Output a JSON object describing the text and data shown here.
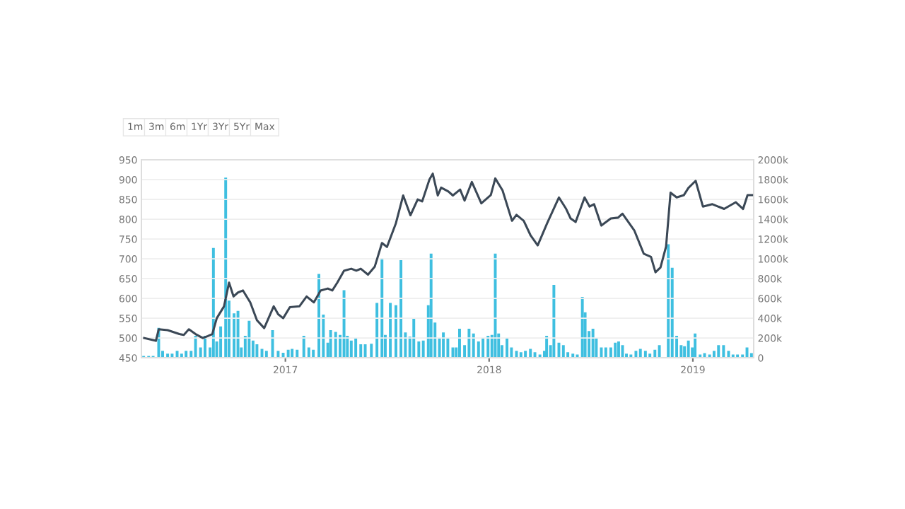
{
  "chart_data": {
    "type": "line",
    "annotations": [
      "1m",
      "3m",
      "6m",
      "1Yr",
      "3Yr",
      "5Yr",
      "Max"
    ],
    "xlim": [
      "2016-04-18",
      "2019-04-20"
    ],
    "xticks": [
      {
        "value": "2017-01-01",
        "label": "2017"
      },
      {
        "value": "2018-01-01",
        "label": "2018"
      },
      {
        "value": "2019-01-01",
        "label": "2019"
      }
    ],
    "ylim": [
      450,
      950
    ],
    "yticks": [
      450,
      500,
      550,
      600,
      650,
      700,
      750,
      800,
      850,
      900,
      950
    ],
    "y2lim": [
      0,
      2000
    ],
    "y2ticks": [
      {
        "value": 0,
        "label": "0"
      },
      {
        "value": 200,
        "label": "200k"
      },
      {
        "value": 400,
        "label": "400k"
      },
      {
        "value": 600,
        "label": "600k"
      },
      {
        "value": 800,
        "label": "800k"
      },
      {
        "value": 1000,
        "label": "1000k"
      },
      {
        "value": 1200,
        "label": "1200k"
      },
      {
        "value": 1400,
        "label": "1400k"
      },
      {
        "value": 1600,
        "label": "1600k"
      },
      {
        "value": 1800,
        "label": "1800k"
      },
      {
        "value": 2000,
        "label": "2000k"
      }
    ],
    "grid": "y",
    "legend": false,
    "marker": "none",
    "line_style": "solid",
    "series": [
      {
        "type": "bar",
        "axis": "y2",
        "color": "#3fbfe0",
        "x": [
          "2016-04-22",
          "2016-05-01",
          "2016-05-09",
          "2016-05-19",
          "2016-05-26",
          "2016-06-04",
          "2016-06-12",
          "2016-06-21",
          "2016-06-29",
          "2016-07-07",
          "2016-07-16",
          "2016-07-24",
          "2016-08-02",
          "2016-08-10",
          "2016-08-19",
          "2016-08-25",
          "2016-08-31",
          "2016-09-07",
          "2016-09-16",
          "2016-09-22",
          "2016-10-01",
          "2016-10-08",
          "2016-10-14",
          "2016-10-21",
          "2016-10-28",
          "2016-11-04",
          "2016-11-11",
          "2016-11-20",
          "2016-11-28",
          "2016-12-09",
          "2016-12-19",
          "2016-12-28",
          "2017-01-06",
          "2017-01-13",
          "2017-01-22",
          "2017-02-03",
          "2017-02-12",
          "2017-02-20",
          "2017-03-02",
          "2017-03-10",
          "2017-03-18",
          "2017-03-23",
          "2017-04-01",
          "2017-04-09",
          "2017-04-16",
          "2017-04-22",
          "2017-04-29",
          "2017-05-07",
          "2017-05-16",
          "2017-05-24",
          "2017-06-04",
          "2017-06-14",
          "2017-06-23",
          "2017-06-29",
          "2017-07-08",
          "2017-07-18",
          "2017-07-27",
          "2017-08-04",
          "2017-08-12",
          "2017-08-19",
          "2017-08-28",
          "2017-09-05",
          "2017-09-14",
          "2017-09-19",
          "2017-09-26",
          "2017-10-04",
          "2017-10-11",
          "2017-10-19",
          "2017-10-28",
          "2017-11-03",
          "2017-11-09",
          "2017-11-18",
          "2017-11-26",
          "2017-12-04",
          "2017-12-13",
          "2017-12-21",
          "2017-12-30",
          "2018-01-06",
          "2018-01-12",
          "2018-01-18",
          "2018-01-24",
          "2018-02-02",
          "2018-02-10",
          "2018-02-19",
          "2018-02-27",
          "2018-03-07",
          "2018-03-16",
          "2018-03-24",
          "2018-04-02",
          "2018-04-10",
          "2018-04-14",
          "2018-04-21",
          "2018-04-27",
          "2018-05-06",
          "2018-05-14",
          "2018-05-22",
          "2018-05-31",
          "2018-06-08",
          "2018-06-17",
          "2018-06-22",
          "2018-06-29",
          "2018-07-06",
          "2018-07-12",
          "2018-07-21",
          "2018-07-29",
          "2018-08-07",
          "2018-08-15",
          "2018-08-21",
          "2018-08-28",
          "2018-09-04",
          "2018-09-12",
          "2018-09-21",
          "2018-09-29",
          "2018-10-08",
          "2018-10-16",
          "2018-10-25",
          "2018-11-02",
          "2018-11-08",
          "2018-11-18",
          "2018-11-25",
          "2018-12-03",
          "2018-12-11",
          "2018-12-17",
          "2018-12-24",
          "2018-12-31",
          "2019-01-05",
          "2019-01-14",
          "2019-01-22",
          "2019-01-31",
          "2019-02-08",
          "2019-02-16",
          "2019-02-25",
          "2019-03-06",
          "2019-03-14",
          "2019-03-22",
          "2019-03-31",
          "2019-04-08",
          "2019-04-16"
        ],
        "values": [
          19,
          19,
          19,
          303,
          71,
          43,
          43,
          71,
          43,
          71,
          71,
          223,
          104,
          223,
          104,
          1109,
          166,
          318,
          1820,
          578,
          450,
          474,
          104,
          223,
          375,
          175,
          137,
          90,
          71,
          280,
          71,
          52,
          81,
          90,
          81,
          223,
          104,
          81,
          848,
          436,
          152,
          280,
          261,
          232,
          683,
          223,
          175,
          199,
          137,
          137,
          142,
          554,
          1005,
          232,
          554,
          531,
          986,
          256,
          213,
          398,
          166,
          175,
          531,
          1052,
          356,
          199,
          256,
          199,
          104,
          104,
          294,
          128,
          294,
          246,
          166,
          199,
          223,
          232,
          1052,
          246,
          128,
          199,
          104,
          71,
          57,
          71,
          90,
          57,
          33,
          71,
          223,
          128,
          736,
          152,
          128,
          57,
          43,
          33,
          616,
          460,
          270,
          294,
          199,
          104,
          104,
          104,
          152,
          166,
          128,
          43,
          33,
          71,
          90,
          71,
          43,
          81,
          128,
          9,
          1147,
          910,
          223,
          128,
          118,
          175,
          104,
          246,
          33,
          47,
          33,
          71,
          128,
          128,
          71,
          33,
          33,
          33,
          104,
          47
        ]
      },
      {
        "color": "#3b4856",
        "x": [
          "2016-04-23",
          "2016-05-14",
          "2016-05-19",
          "2016-06-04",
          "2016-06-25",
          "2016-07-03",
          "2016-07-12",
          "2016-07-24",
          "2016-08-06",
          "2016-08-15",
          "2016-08-23",
          "2016-08-31",
          "2016-09-13",
          "2016-09-22",
          "2016-09-30",
          "2016-10-08",
          "2016-10-17",
          "2016-10-30",
          "2016-11-11",
          "2016-11-24",
          "2016-12-11",
          "2016-12-19",
          "2016-12-28",
          "2017-01-09",
          "2017-01-26",
          "2017-02-08",
          "2017-02-21",
          "2017-03-05",
          "2017-03-18",
          "2017-03-26",
          "2017-04-04",
          "2017-04-16",
          "2017-04-29",
          "2017-05-08",
          "2017-05-16",
          "2017-05-29",
          "2017-06-10",
          "2017-06-23",
          "2017-07-02",
          "2017-07-18",
          "2017-07-31",
          "2017-08-13",
          "2017-08-26",
          "2017-09-03",
          "2017-09-16",
          "2017-09-22",
          "2017-10-01",
          "2017-10-07",
          "2017-10-20",
          "2017-10-28",
          "2017-11-10",
          "2017-11-18",
          "2017-12-01",
          "2017-12-18",
          "2018-01-04",
          "2018-01-12",
          "2018-01-25",
          "2018-02-11",
          "2018-02-19",
          "2018-03-04",
          "2018-03-16",
          "2018-03-29",
          "2018-04-15",
          "2018-05-06",
          "2018-05-19",
          "2018-05-27",
          "2018-06-05",
          "2018-06-21",
          "2018-06-30",
          "2018-07-08",
          "2018-07-21",
          "2018-08-07",
          "2018-08-20",
          "2018-08-28",
          "2018-09-18",
          "2018-10-05",
          "2018-10-18",
          "2018-10-26",
          "2018-11-04",
          "2018-11-14",
          "2018-11-22",
          "2018-12-03",
          "2018-12-16",
          "2018-12-24",
          "2019-01-06",
          "2019-01-19",
          "2019-02-05",
          "2019-02-26",
          "2019-03-19",
          "2019-04-01",
          "2019-04-09",
          "2019-04-18"
        ],
        "values": [
          500,
          493,
          522,
          520,
          510,
          508,
          522,
          510,
          500,
          505,
          510,
          550,
          580,
          640,
          605,
          615,
          620,
          590,
          545,
          525,
          580,
          560,
          550,
          578,
          580,
          605,
          590,
          620,
          625,
          620,
          640,
          670,
          675,
          670,
          675,
          660,
          680,
          740,
          730,
          790,
          860,
          810,
          850,
          845,
          900,
          915,
          860,
          880,
          870,
          860,
          875,
          847,
          894,
          840,
          861,
          903,
          873,
          796,
          811,
          796,
          760,
          734,
          790,
          855,
          826,
          802,
          793,
          855,
          832,
          838,
          784,
          802,
          804,
          814,
          772,
          713,
          705,
          666,
          678,
          731,
          867,
          855,
          861,
          879,
          897,
          832,
          838,
          826,
          843,
          826,
          861,
          861
        ]
      }
    ]
  }
}
